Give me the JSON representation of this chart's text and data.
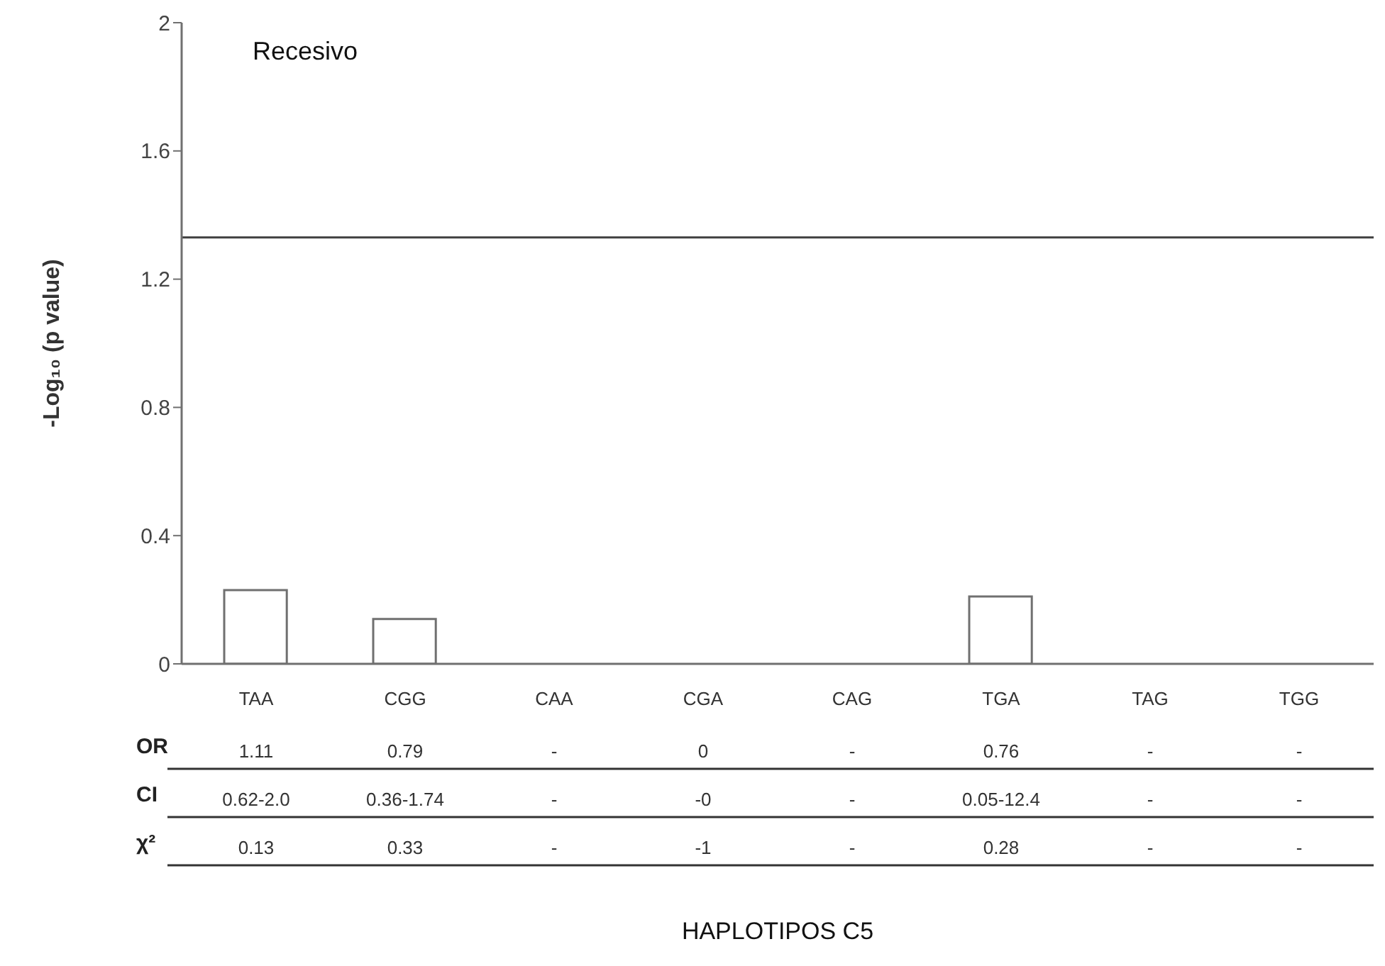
{
  "chart_data": {
    "type": "bar",
    "title": "Recesivo",
    "ylabel": "-Log₁₀ (p value)",
    "categories": [
      "TAA",
      "CGG",
      "CAA",
      "CGA",
      "CAG",
      "TGA",
      "TAG",
      "TGG"
    ],
    "values": [
      0.23,
      0.14,
      0,
      0,
      0,
      0.21,
      0,
      0
    ],
    "color": "#ffffff",
    "ylim": [
      0,
      2
    ],
    "yticks": [
      0,
      0.4,
      0.8,
      1.2,
      1.6,
      2
    ],
    "grid": false,
    "legend": false,
    "ref_lines": [
      {
        "axis": "y",
        "value": 1.33,
        "color": "#404040"
      }
    ],
    "annotations": [
      "OR",
      "1.11",
      "0.79",
      "-",
      "0",
      "-",
      "0.76",
      "-",
      "-",
      "CI",
      "0.62-2.0",
      "0.36-1.74",
      "-",
      "-0",
      "-",
      "0.05-12.4",
      "-",
      "-",
      "χ²",
      "0.13",
      "0.33",
      "-",
      "-1",
      "-",
      "0.28",
      "-",
      "-",
      "HAPLOTIPOS C5"
    ]
  }
}
